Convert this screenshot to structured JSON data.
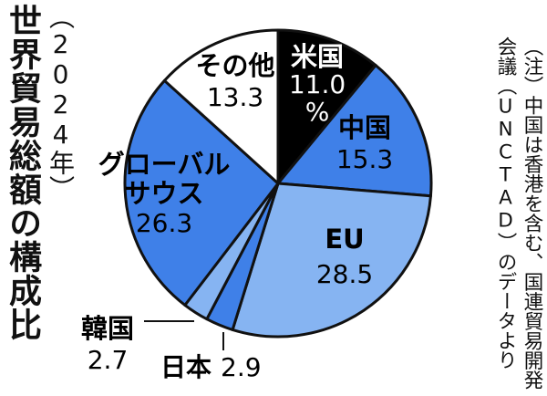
{
  "title": "世界貿易総額の構成比",
  "subtitle": "（2024年）",
  "note": "（注）中国は香港を含む、国連貿易開発会議（UNCTAD）のデータより",
  "chart_data": {
    "type": "pie",
    "unit": "%",
    "start": "12 o'clock, clockwise",
    "slices": [
      {
        "label": "米国",
        "value_text": "11.0",
        "value": 11.0,
        "color": "#000000",
        "text_color": "#ffffff"
      },
      {
        "label": "中国",
        "value_text": "15.3",
        "value": 15.3,
        "color": "#3f80e8",
        "text_color": "#000000"
      },
      {
        "label": "EU",
        "value_text": "28.5",
        "value": 28.5,
        "color": "#86b4f2",
        "text_color": "#000000"
      },
      {
        "label": "日本",
        "value_text": "2.9",
        "value": 2.9,
        "color": "#3f80e8",
        "text_color": "#000000"
      },
      {
        "label": "韓国",
        "value_text": "2.7",
        "value": 2.7,
        "color": "#86b4f2",
        "text_color": "#000000"
      },
      {
        "label": "グローバル\nサウス",
        "value_text": "26.3",
        "value": 26.3,
        "color": "#3f80e8",
        "text_color": "#000000"
      },
      {
        "label": "その他",
        "value_text": "13.3",
        "value": 13.3,
        "color": "#ffffff",
        "text_color": "#000000"
      }
    ]
  }
}
